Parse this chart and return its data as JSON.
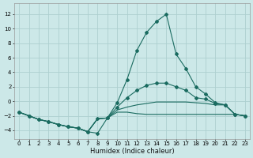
{
  "xlabel": "Humidex (Indice chaleur)",
  "bg_color": "#cce8e8",
  "grid_color": "#add0d0",
  "line_color": "#1a6b60",
  "xlim": [
    -0.5,
    23.5
  ],
  "ylim": [
    -5.2,
    13.5
  ],
  "xticks": [
    0,
    1,
    2,
    3,
    4,
    5,
    6,
    7,
    8,
    9,
    10,
    11,
    12,
    13,
    14,
    15,
    16,
    17,
    18,
    19,
    20,
    21,
    22,
    23
  ],
  "yticks": [
    -4,
    -2,
    0,
    2,
    4,
    6,
    8,
    10,
    12
  ],
  "lines": [
    {
      "x": [
        0,
        1,
        2,
        3,
        4,
        5,
        6,
        7,
        8,
        9,
        10,
        11,
        12,
        13,
        14,
        15,
        16,
        17,
        18,
        19,
        20,
        21,
        22,
        23
      ],
      "y": [
        -1.5,
        -2.0,
        -2.5,
        -2.8,
        -3.2,
        -3.5,
        -3.7,
        -4.2,
        -4.4,
        -2.3,
        -0.2,
        3.0,
        7.0,
        9.5,
        11.0,
        12.0,
        6.5,
        4.5,
        2.0,
        1.0,
        -0.2,
        -0.5,
        -1.8,
        -2.0
      ],
      "marker": true
    },
    {
      "x": [
        0,
        1,
        2,
        3,
        4,
        5,
        6,
        7,
        8,
        9,
        10,
        11,
        12,
        13,
        14,
        15,
        16,
        17,
        18,
        19,
        20,
        21,
        22,
        23
      ],
      "y": [
        -1.5,
        -2.0,
        -2.5,
        -2.8,
        -3.2,
        -3.5,
        -3.7,
        -4.2,
        -2.4,
        -2.3,
        -0.8,
        0.5,
        1.5,
        2.2,
        2.5,
        2.5,
        2.0,
        1.5,
        0.5,
        0.3,
        -0.3,
        -0.5,
        -1.8,
        -2.0
      ],
      "marker": true
    },
    {
      "x": [
        0,
        1,
        2,
        3,
        4,
        5,
        6,
        7,
        8,
        9,
        10,
        11,
        12,
        13,
        14,
        15,
        16,
        17,
        18,
        19,
        20,
        21,
        22,
        23
      ],
      "y": [
        -1.5,
        -2.0,
        -2.5,
        -2.8,
        -3.2,
        -3.5,
        -3.7,
        -4.2,
        -2.4,
        -2.3,
        -1.2,
        -0.8,
        -0.5,
        -0.3,
        -0.1,
        -0.1,
        -0.1,
        -0.1,
        -0.2,
        -0.3,
        -0.5,
        -0.5,
        -1.8,
        -2.0
      ],
      "marker": false
    },
    {
      "x": [
        0,
        1,
        2,
        3,
        4,
        5,
        6,
        7,
        8,
        9,
        10,
        11,
        12,
        13,
        14,
        15,
        16,
        17,
        18,
        19,
        20,
        21,
        22,
        23
      ],
      "y": [
        -1.5,
        -2.0,
        -2.5,
        -2.8,
        -3.2,
        -3.5,
        -3.7,
        -4.2,
        -2.4,
        -2.3,
        -1.5,
        -1.5,
        -1.7,
        -1.8,
        -1.8,
        -1.8,
        -1.8,
        -1.8,
        -1.8,
        -1.8,
        -1.8,
        -1.8,
        -1.8,
        -2.0
      ],
      "marker": false
    }
  ]
}
